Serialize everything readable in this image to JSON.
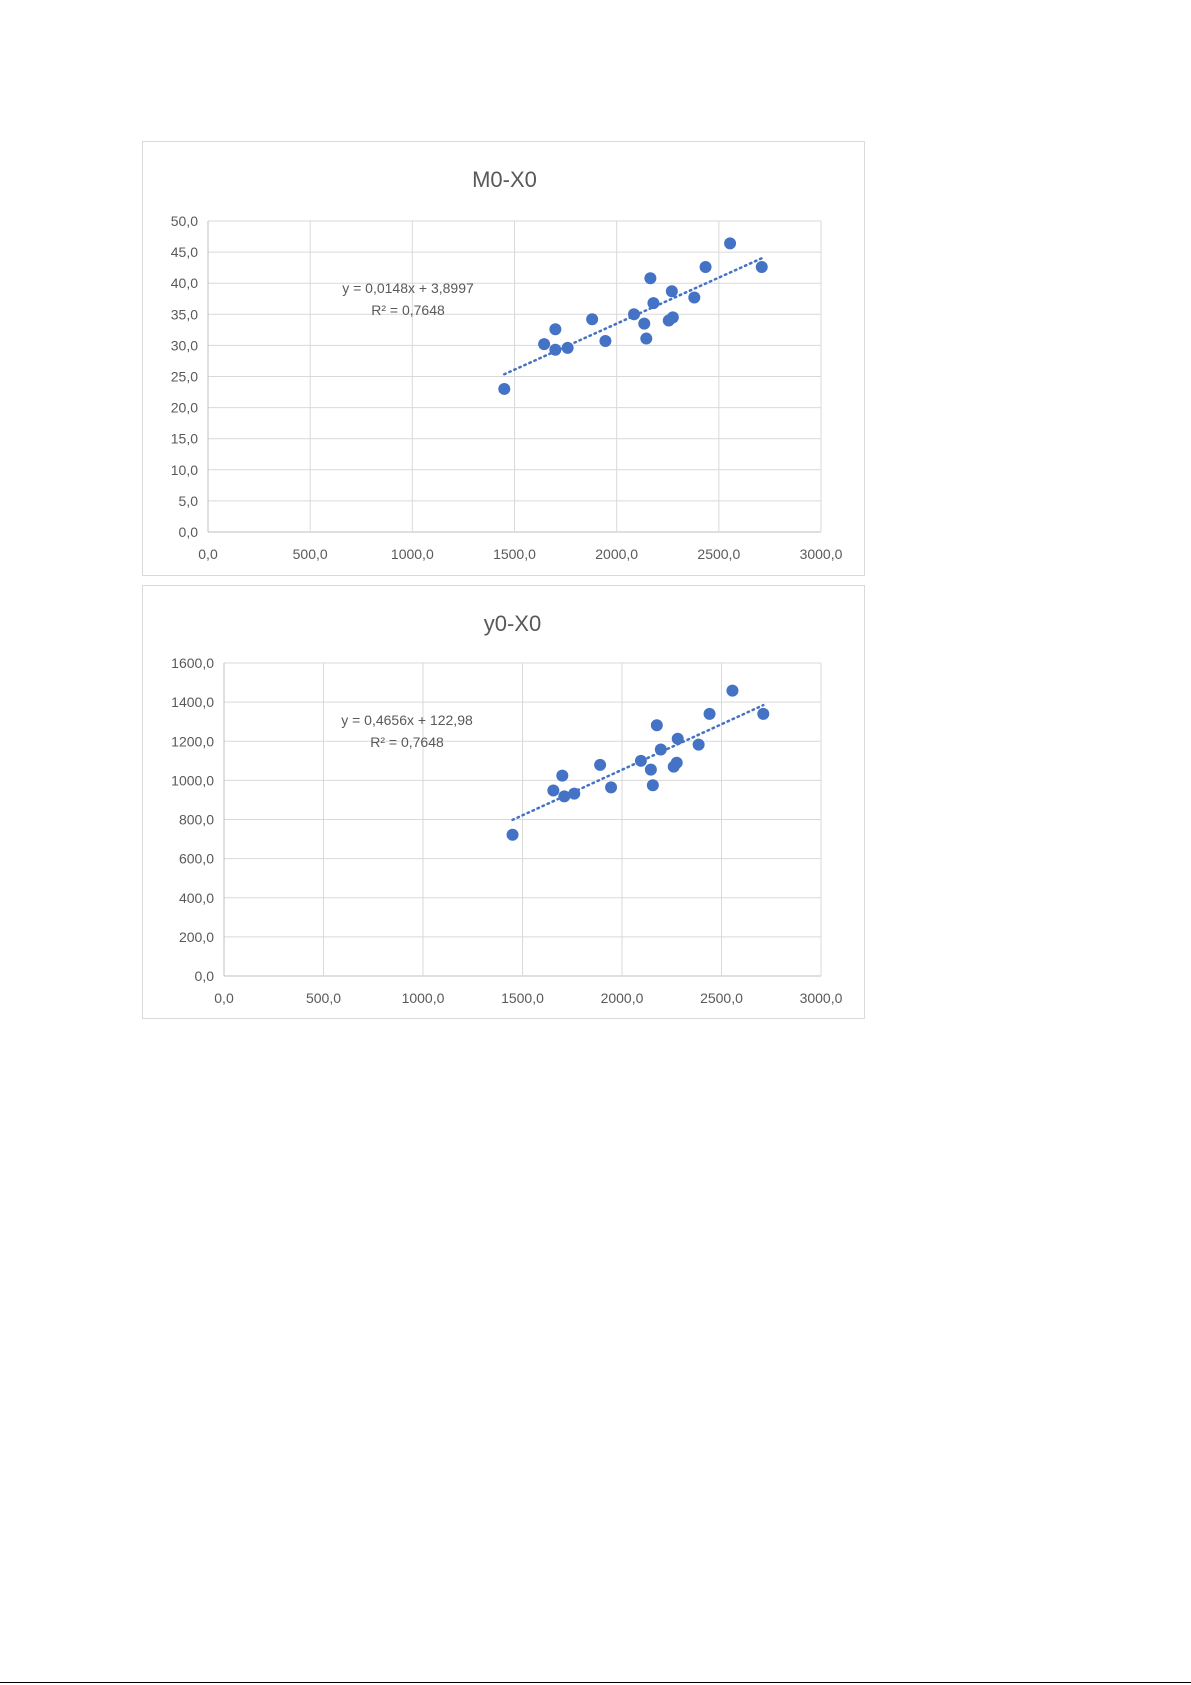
{
  "chart_data": [
    {
      "type": "scatter",
      "title": "M0-X0",
      "xlabel": "",
      "ylabel": "",
      "xlim": [
        0,
        3000
      ],
      "ylim": [
        0,
        50
      ],
      "x_ticks": [
        "0,0",
        "500,0",
        "1000,0",
        "1500,0",
        "2000,0",
        "2500,0",
        "3000,0"
      ],
      "y_ticks": [
        "0,0",
        "5,0",
        "10,0",
        "15,0",
        "20,0",
        "25,0",
        "30,0",
        "35,0",
        "40,0",
        "45,0",
        "50,0"
      ],
      "grid": true,
      "legend": "none",
      "marker_color": "#4472c4",
      "trendline": {
        "type": "linear",
        "slope": 0.0148,
        "intercept": 3.8997,
        "x_range": [
          1450,
          2710
        ],
        "color": "#4472c4",
        "style": "dotted",
        "equation": "y = 0,0148x + 3,8997",
        "r2": "R² = 0,7648"
      },
      "series": [
        {
          "points": [
            [
              1450,
              23.0
            ],
            [
              1645,
              30.2
            ],
            [
              1700,
              29.3
            ],
            [
              1700,
              32.6
            ],
            [
              1760,
              29.6
            ],
            [
              1880,
              34.2
            ],
            [
              1945,
              30.7
            ],
            [
              2085,
              35.0
            ],
            [
              2135,
              33.5
            ],
            [
              2145,
              31.1
            ],
            [
              2165,
              40.8
            ],
            [
              2180,
              36.8
            ],
            [
              2255,
              34.0
            ],
            [
              2270,
              38.7
            ],
            [
              2275,
              34.5
            ],
            [
              2380,
              37.7
            ],
            [
              2435,
              42.6
            ],
            [
              2555,
              46.4
            ],
            [
              2710,
              42.6
            ]
          ]
        }
      ]
    },
    {
      "type": "scatter",
      "title": "y0-X0",
      "xlabel": "",
      "ylabel": "",
      "xlim": [
        0,
        3000
      ],
      "ylim": [
        0,
        1600
      ],
      "x_ticks": [
        "0,0",
        "500,0",
        "1000,0",
        "1500,0",
        "2000,0",
        "2500,0",
        "3000,0"
      ],
      "y_ticks": [
        "0,0",
        "200,0",
        "400,0",
        "600,0",
        "800,0",
        "1000,0",
        "1200,0",
        "1400,0",
        "1600,0"
      ],
      "grid": true,
      "legend": "none",
      "marker_color": "#4472c4",
      "trendline": {
        "type": "linear",
        "slope": 0.4656,
        "intercept": 122.98,
        "x_range": [
          1450,
          2710
        ],
        "color": "#4472c4",
        "style": "dotted",
        "equation": "y = 0,4656x + 122,98",
        "r2": "R² = 0,7648"
      },
      "series": [
        {
          "points": [
            [
              1450,
              722
            ],
            [
              1655,
              948
            ],
            [
              1700,
              1024
            ],
            [
              1710,
              918
            ],
            [
              1760,
              932
            ],
            [
              1890,
              1079
            ],
            [
              1945,
              964
            ],
            [
              2095,
              1100
            ],
            [
              2145,
              1055
            ],
            [
              2155,
              975
            ],
            [
              2175,
              1282
            ],
            [
              2195,
              1158
            ],
            [
              2260,
              1070
            ],
            [
              2275,
              1090
            ],
            [
              2280,
              1213
            ],
            [
              2385,
              1183
            ],
            [
              2440,
              1340
            ],
            [
              2555,
              1459
            ],
            [
              2710,
              1340
            ]
          ]
        }
      ]
    }
  ]
}
